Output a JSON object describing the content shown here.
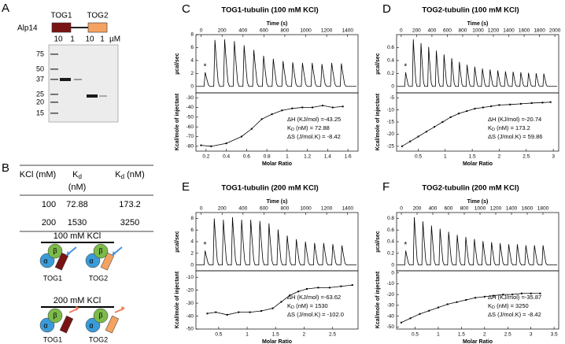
{
  "panels": {
    "A": {
      "letter": "A",
      "protein": "Alp14",
      "domain1": "TOG1",
      "domain2": "TOG2",
      "lanes": [
        "10",
        "1",
        "10",
        "1"
      ],
      "unit": "µM",
      "markers": [
        "75",
        "50",
        "37",
        "25",
        "20",
        "15"
      ]
    },
    "B": {
      "letter": "B",
      "header": {
        "col1": "KCl (mM)",
        "col2": {
          "text": "K",
          "sub": "d",
          "unit": "(nM)"
        },
        "col3": {
          "text": "K",
          "sub": "d",
          "unit": "(nM)"
        }
      },
      "rows": [
        [
          "100",
          "72.88",
          "173.2"
        ],
        [
          "200",
          "1530",
          "3250"
        ]
      ],
      "col2_color": "#2233aa",
      "col3_color": "#5b9bd5",
      "cond1": "100 mM  KCl",
      "cond2": "200 mM  KCl",
      "alpha": "α",
      "beta": "β",
      "tog1": "TOG1",
      "tog2": "TOG2"
    },
    "C": {
      "letter": "C",
      "title": "TOG1-tubulin (100 mM KCl)",
      "title_color": "#1a1aa6",
      "time_label": "Time (s)",
      "time_lim": [
        -50,
        1500
      ],
      "time_ticks": [
        0,
        200,
        400,
        600,
        800,
        1000,
        1200,
        1400
      ],
      "ucal_label": "µcal/sec",
      "ucal_lim": [
        -1,
        8
      ],
      "ucal_ticks": [
        0,
        2,
        4,
        6,
        8
      ],
      "kcal_label": "Kcal/mole of injectant",
      "kcal_lim": [
        -85,
        -25
      ],
      "kcal_ticks": [
        -80,
        -70,
        -60,
        -50,
        -40,
        -30
      ],
      "ratio_label": "Molar Ratio",
      "ratio_lim": [
        0.1,
        1.7
      ],
      "ratio_ticks": [
        0.2,
        0.4,
        0.6,
        0.8,
        1.0,
        1.2,
        1.4,
        1.6
      ],
      "asterisk": "*",
      "points": {
        "x": [
          0.15,
          0.25,
          0.4,
          0.55,
          0.65,
          0.75,
          0.85,
          0.95,
          1.05,
          1.15,
          1.25,
          1.35,
          1.45,
          1.55
        ],
        "y": [
          -79,
          -80,
          -77,
          -70,
          -62,
          -52,
          -47,
          -43,
          -41,
          -40,
          -40,
          -38,
          -40,
          -39
        ]
      },
      "fit_lines": [
        {
          "text": "ΔH (KJ/mol) =-43.25"
        },
        {
          "pre": "K",
          "sub": "D",
          "post": " (nM)  = 72.88"
        },
        {
          "text": "ΔS (J/mol.K) = -8.42"
        }
      ]
    },
    "D": {
      "letter": "D",
      "title": "TOG2-tubulin (100 mM KCl)",
      "title_color": "#5b9bd5",
      "time_label": "Time (s)",
      "time_lim": [
        -60,
        2050
      ],
      "time_ticks": [
        0,
        200,
        400,
        600,
        800,
        1000,
        1200,
        1400,
        1600,
        1800,
        2000
      ],
      "ucal_label": "µcal/sec",
      "ucal_lim": [
        -0.1,
        0.8
      ],
      "ucal_ticks": [
        0,
        0.2,
        0.4,
        0.6
      ],
      "kcal_label": "Kcal/mole of injectant",
      "kcal_lim": [
        -27,
        -3
      ],
      "kcal_ticks": [
        -25,
        -20,
        -15,
        -10,
        -5
      ],
      "ratio_label": "Molar Ratio",
      "ratio_lim": [
        0.1,
        3.1
      ],
      "ratio_ticks": [
        0.5,
        1.0,
        1.5,
        2.0,
        2.5,
        3.0
      ],
      "asterisk": "*",
      "points": {
        "x": [
          0.2,
          0.35,
          0.5,
          0.65,
          0.8,
          0.95,
          1.1,
          1.25,
          1.4,
          1.55,
          1.7,
          1.85,
          2.0,
          2.2,
          2.4,
          2.6,
          2.8,
          2.95
        ],
        "y": [
          -25,
          -23,
          -21,
          -19,
          -17,
          -15,
          -13,
          -11.5,
          -10.5,
          -9.5,
          -9,
          -8.5,
          -8,
          -7.8,
          -7.5,
          -7.2,
          -7,
          -6.8
        ]
      },
      "fit_lines": [
        {
          "text": "ΔH (KJ/mol) =-20.74"
        },
        {
          "pre": "K",
          "sub": "D",
          "post": " (nM)    = 173.2"
        },
        {
          "text": "ΔS (J/mol.K) = 59.86"
        }
      ]
    },
    "E": {
      "letter": "E",
      "title": "TOG1-tubulin (200 mM KCl)",
      "title_color": "#1a1aa6",
      "time_label": "Time (s)",
      "time_lim": [
        -50,
        1500
      ],
      "time_ticks": [
        0,
        200,
        400,
        600,
        800,
        1000,
        1200,
        1400
      ],
      "ucal_label": "µcal/sec",
      "ucal_lim": [
        -1,
        9
      ],
      "ucal_ticks": [
        0,
        2,
        4,
        6,
        8
      ],
      "kcal_label": "Kcal/mole of injectant",
      "kcal_lim": [
        -50,
        -5
      ],
      "kcal_ticks": [
        -50,
        -40,
        -30,
        -20,
        -10
      ],
      "ratio_label": "Molar Ratio",
      "ratio_lim": [
        0.1,
        2.95
      ],
      "ratio_ticks": [
        0.5,
        1.0,
        1.5,
        2.0,
        2.5
      ],
      "asterisk": "*",
      "points": {
        "x": [
          0.3,
          0.45,
          0.65,
          0.85,
          1.05,
          1.25,
          1.45,
          1.6,
          1.75,
          1.9,
          2.05,
          2.25,
          2.45,
          2.65,
          2.85
        ],
        "y": [
          -38,
          -37,
          -39,
          -37,
          -37,
          -36,
          -34,
          -29,
          -24,
          -21,
          -19,
          -18,
          -18,
          -17,
          -16
        ]
      },
      "fit_lines": [
        {
          "text": "ΔH (KJ/mol) =-63.62"
        },
        {
          "pre": "K",
          "sub": "D",
          "post": " (nM)  = 1530"
        },
        {
          "text": "ΔS (J/mol.K) = -102.0"
        }
      ]
    },
    "F": {
      "letter": "F",
      "title": "TOG2-tubulin (200 mM KCl)",
      "title_color": "#5b9bd5",
      "time_label": "Time (s)",
      "time_lim": [
        -60,
        2000
      ],
      "time_ticks": [
        0,
        200,
        400,
        600,
        800,
        1000,
        1200,
        1400,
        1600,
        1800
      ],
      "ucal_label": "µcal/sec",
      "ucal_lim": [
        -0.1,
        0.9
      ],
      "ucal_ticks": [
        0,
        0.2,
        0.4,
        0.6,
        0.8
      ],
      "kcal_label": "Kcal/mole of injectant",
      "kcal_lim": [
        -52,
        2
      ],
      "kcal_ticks": [
        -50,
        -40,
        -30,
        -20,
        -10,
        0
      ],
      "ratio_label": "Molar Ratio",
      "ratio_lim": [
        0.1,
        3.6
      ],
      "ratio_ticks": [
        0.5,
        1.0,
        1.5,
        2.0,
        2.5,
        3.0,
        3.5
      ],
      "asterisk": "*",
      "points": {
        "x": [
          0.2,
          0.4,
          0.6,
          0.8,
          1.0,
          1.2,
          1.4,
          1.6,
          1.8,
          2.0,
          2.2,
          2.4,
          2.6,
          2.8,
          3.0,
          3.2
        ],
        "y": [
          -46,
          -42,
          -38,
          -35,
          -32,
          -29,
          -27,
          -25,
          -23,
          -22,
          -21,
          -20,
          -20,
          -19,
          -19,
          -19
        ]
      },
      "fit_lines": [
        {
          "text": "ΔH (KJ/mol) =-35.87"
        },
        {
          "pre": "K",
          "sub": "D",
          "post": " (nM)  = 3250"
        },
        {
          "text": "ΔS (J/mol.K) = -8.42"
        }
      ]
    }
  }
}
